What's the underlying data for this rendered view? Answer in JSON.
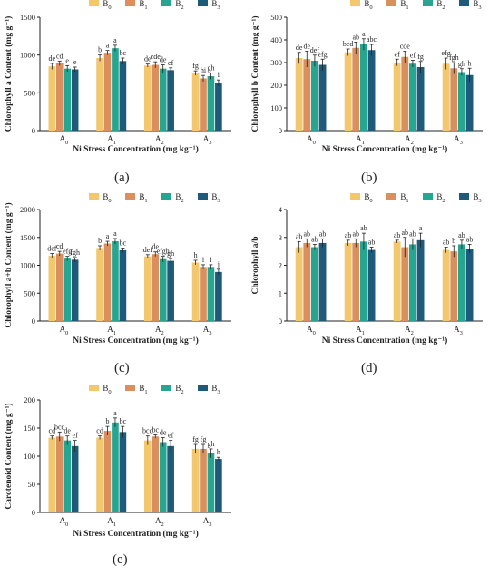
{
  "figure": {
    "panels": [
      "(a)",
      "(b)",
      "(c)",
      "(d)",
      "(e)"
    ]
  },
  "legend": {
    "entries": [
      "B0",
      "B1",
      "B2",
      "B3"
    ],
    "colors": [
      "#f2c76e",
      "#d9905e",
      "#26a691",
      "#1f5a7a"
    ]
  },
  "chart_data": [
    {
      "id": "a",
      "type": "bar",
      "ylabel": "Chlorophyll a Content (mg g⁻¹)",
      "xlabel": "Ni Stress Concentration (mg kg⁻¹)",
      "categories": [
        "A0",
        "A1",
        "A2",
        "A3"
      ],
      "ylim": [
        0,
        1500
      ],
      "yticks": [
        0,
        500,
        1000,
        1500
      ],
      "series": [
        {
          "name": "B0",
          "values": [
            850,
            960,
            860,
            760
          ],
          "errors": [
            40,
            40,
            20,
            30
          ],
          "letters": [
            "de",
            "b",
            "de",
            "fg"
          ]
        },
        {
          "name": "B1",
          "values": [
            890,
            1030,
            870,
            690
          ],
          "errors": [
            30,
            30,
            40,
            40
          ],
          "letters": [
            "cd",
            "a",
            "cde",
            "hi"
          ]
        },
        {
          "name": "B2",
          "values": [
            820,
            1090,
            820,
            720
          ],
          "errors": [
            40,
            40,
            50,
            40
          ],
          "letters": [
            "e",
            "a",
            "de",
            "gh"
          ]
        },
        {
          "name": "B3",
          "values": [
            810,
            920,
            800,
            630
          ],
          "errors": [
            30,
            40,
            30,
            40
          ],
          "letters": [
            "e",
            "bc",
            "ef",
            "i"
          ]
        }
      ]
    },
    {
      "id": "b",
      "type": "bar",
      "ylabel": "Chlorophyll b Content (mg g⁻¹)",
      "xlabel": "Ni Stress Concentration (mg kg⁻¹)",
      "categories": [
        "A0",
        "A1",
        "A2",
        "A3"
      ],
      "ylim": [
        0,
        500
      ],
      "yticks": [
        0,
        100,
        200,
        300,
        400,
        500
      ],
      "series": [
        {
          "name": "B0",
          "values": [
            320,
            345,
            300,
            295
          ],
          "errors": [
            25,
            15,
            15,
            25
          ],
          "letters": [
            "de",
            "bcd",
            "ef",
            "efg"
          ]
        },
        {
          "name": "B1",
          "values": [
            315,
            365,
            325,
            275
          ],
          "errors": [
            35,
            25,
            25,
            25
          ],
          "letters": [
            "de",
            "ab",
            "cde",
            "fgh"
          ]
        },
        {
          "name": "B2",
          "values": [
            308,
            380,
            295,
            258
          ],
          "errors": [
            25,
            25,
            15,
            15
          ],
          "letters": [
            "def",
            "a",
            "ef",
            "gh"
          ]
        },
        {
          "name": "B3",
          "values": [
            290,
            355,
            280,
            245
          ],
          "errors": [
            25,
            25,
            25,
            30
          ],
          "letters": [
            "efg",
            "abc",
            "fg",
            "h"
          ]
        }
      ]
    },
    {
      "id": "c",
      "type": "bar",
      "ylabel": "Chlorophyll a+b Content (mg g⁻¹)",
      "xlabel": "Ni Stress Concentration (mg kg⁻¹)",
      "categories": [
        "A0",
        "A1",
        "A2",
        "A3"
      ],
      "ylim": [
        0,
        2000
      ],
      "yticks": [
        0,
        500,
        1000,
        1500,
        2000
      ],
      "series": [
        {
          "name": "B0",
          "values": [
            1170,
            1310,
            1160,
            1050
          ],
          "errors": [
            40,
            40,
            30,
            40
          ],
          "letters": [
            "def",
            "b",
            "def",
            "h"
          ]
        },
        {
          "name": "B1",
          "values": [
            1210,
            1390,
            1200,
            970
          ],
          "errors": [
            40,
            40,
            40,
            40
          ],
          "letters": [
            "cd",
            "a",
            "de",
            "i"
          ]
        },
        {
          "name": "B2",
          "values": [
            1120,
            1430,
            1110,
            970
          ],
          "errors": [
            40,
            50,
            50,
            40
          ],
          "letters": [
            "efg",
            "a",
            "efgh",
            "i"
          ]
        },
        {
          "name": "B3",
          "values": [
            1100,
            1270,
            1080,
            880
          ],
          "errors": [
            40,
            40,
            40,
            50
          ],
          "letters": [
            "fgh",
            "bc",
            "gh",
            "j"
          ]
        }
      ]
    },
    {
      "id": "d",
      "type": "bar",
      "ylabel": "Chlorophyll a/b",
      "xlabel": "Ni Stress Concentration (mg kg⁻¹)",
      "categories": [
        "A0",
        "A1",
        "A2",
        "A3"
      ],
      "ylim": [
        0,
        4
      ],
      "yticks": [
        0,
        1,
        2,
        3,
        4
      ],
      "series": [
        {
          "name": "B0",
          "values": [
            2.65,
            2.8,
            2.85,
            2.55
          ],
          "errors": [
            0.2,
            0.1,
            0.05,
            0.1
          ],
          "letters": [
            "ab",
            "ab",
            "ab",
            "ab"
          ]
        },
        {
          "name": "B1",
          "values": [
            2.8,
            2.8,
            2.65,
            2.5
          ],
          "errors": [
            0.15,
            0.15,
            0.35,
            0.2
          ],
          "letters": [
            "ab",
            "ab",
            "ab",
            "b"
          ]
        },
        {
          "name": "B2",
          "values": [
            2.65,
            2.85,
            2.75,
            2.75
          ],
          "errors": [
            0.1,
            0.3,
            0.2,
            0.15
          ],
          "letters": [
            "ab",
            "ab",
            "ab",
            "ab"
          ]
        },
        {
          "name": "B3",
          "values": [
            2.8,
            2.55,
            2.9,
            2.6
          ],
          "errors": [
            0.15,
            0.1,
            0.25,
            0.15
          ],
          "letters": [
            "ab",
            "ab",
            "a",
            "ab"
          ]
        }
      ]
    },
    {
      "id": "e",
      "type": "bar",
      "ylabel": "Carotenoid Content (mg g⁻¹)",
      "xlabel": "Ni Stress Concentration (mg kg⁻¹)",
      "categories": [
        "A0",
        "A1",
        "A2",
        "A3"
      ],
      "ylim": [
        0,
        200
      ],
      "yticks": [
        0,
        50,
        100,
        150,
        200
      ],
      "series": [
        {
          "name": "B0",
          "values": [
            133,
            133,
            128,
            113
          ],
          "errors": [
            3,
            3,
            8,
            8
          ],
          "letters": [
            "cd",
            "cd",
            "bcd",
            "fg"
          ]
        },
        {
          "name": "B1",
          "values": [
            135,
            145,
            135,
            113
          ],
          "errors": [
            8,
            8,
            3,
            8
          ],
          "letters": [
            "bcd",
            "b",
            "bc",
            "fg"
          ]
        },
        {
          "name": "B2",
          "values": [
            128,
            160,
            125,
            105
          ],
          "errors": [
            8,
            8,
            8,
            8
          ],
          "letters": [
            "de",
            "a",
            "de",
            "gh"
          ]
        },
        {
          "name": "B3",
          "values": [
            118,
            143,
            118,
            95
          ],
          "errors": [
            10,
            10,
            10,
            3
          ],
          "letters": [
            "ef",
            "bc",
            "ef",
            "h"
          ]
        }
      ]
    }
  ]
}
